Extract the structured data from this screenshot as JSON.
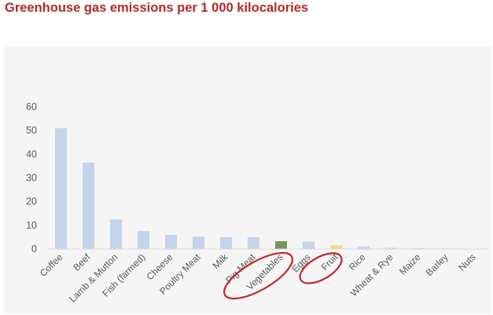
{
  "title": "Greenhouse gas emissions per 1 000 kilocalories",
  "chart_data": {
    "type": "bar",
    "categories": [
      "Coffee",
      "Beef",
      "Lamb & Mutton",
      "Fish (farmed)",
      "Cheese",
      "Poultry Meat",
      "Milk",
      "Pig Meat",
      "Vegetables",
      "Eggs",
      "Fruit",
      "Rice",
      "Wheat & Rye",
      "Maize",
      "Barley",
      "Nuts"
    ],
    "values": [
      51,
      36.5,
      12.5,
      7.5,
      6,
      5.2,
      5,
      5,
      3.3,
      3.2,
      1.6,
      1.1,
      0.5,
      0.3,
      0.2,
      0.1
    ],
    "bar_colors": [
      "#c5d4ea",
      "#c5d4ea",
      "#c5d4ea",
      "#c5d4ea",
      "#c5d4ea",
      "#c5d4ea",
      "#c5d4ea",
      "#c5d4ea",
      "#6f9a58",
      "#c5d4ea",
      "#f8dc88",
      "#c5d4ea",
      "#c5d4ea",
      "#c5d4ea",
      "#c5d4ea",
      "#c5d4ea"
    ],
    "yticks": [
      0,
      10,
      20,
      30,
      40,
      50,
      60
    ],
    "ylim": [
      0,
      60
    ],
    "grid": false,
    "legend": false,
    "highlighted_categories": [
      "Vegetables",
      "Fruit"
    ],
    "annotation_color": "#c0282d"
  }
}
